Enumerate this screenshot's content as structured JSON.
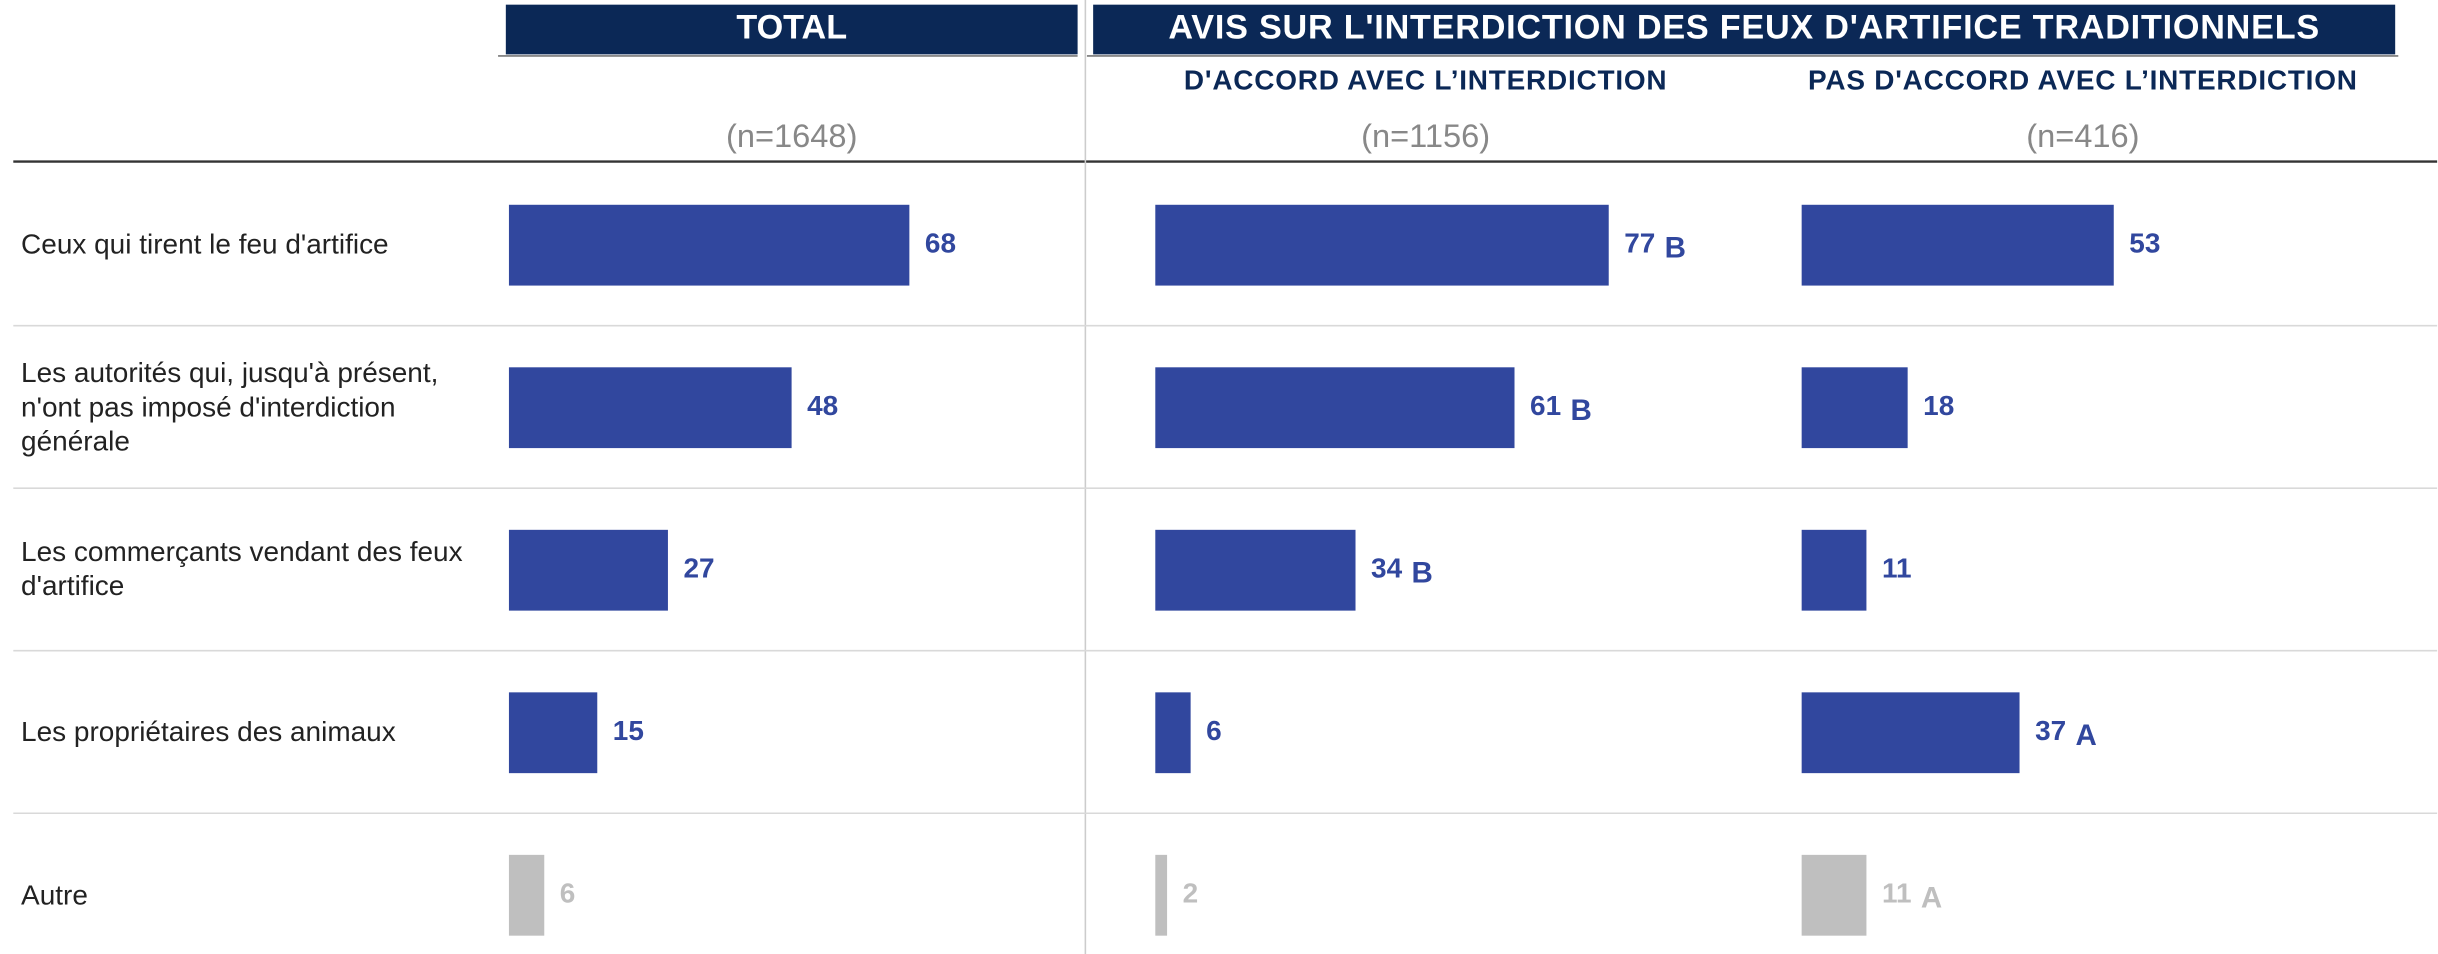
{
  "chart_data": {
    "type": "bar",
    "orientation": "horizontal",
    "group_title": "AVIS SUR L'INTERDICTION DES FEUX D'ARTIFICE TRADITIONNELS",
    "categories": [
      "Ceux qui tirent le feu d'artifice",
      "Les autorités qui, jusqu'à présent, n'ont pas imposé d'interdiction générale",
      "Les commerçants vendant des feux d'artifice",
      "Les propriétaires des animaux",
      "Autre"
    ],
    "colors": [
      "#31479e",
      "#31479e",
      "#31479e",
      "#31479e",
      "#bfbfbf"
    ],
    "xlim": [
      0,
      100
    ],
    "series": [
      {
        "name": "TOTAL",
        "subtitle": "(n=1648)",
        "values": [
          68,
          48,
          27,
          15,
          6
        ],
        "significance": [
          null,
          null,
          null,
          null,
          null
        ]
      },
      {
        "name": "D'ACCORD AVEC L’INTERDICTION",
        "subtitle": "(n=1156)",
        "values": [
          77,
          61,
          34,
          6,
          2
        ],
        "significance": [
          "B",
          "B",
          "B",
          null,
          null
        ]
      },
      {
        "name": "PAS D'ACCORD AVEC L’INTERDICTION",
        "subtitle": "(n=416)",
        "values": [
          53,
          18,
          11,
          37,
          11
        ],
        "significance": [
          null,
          null,
          null,
          "A",
          "A"
        ]
      }
    ]
  }
}
